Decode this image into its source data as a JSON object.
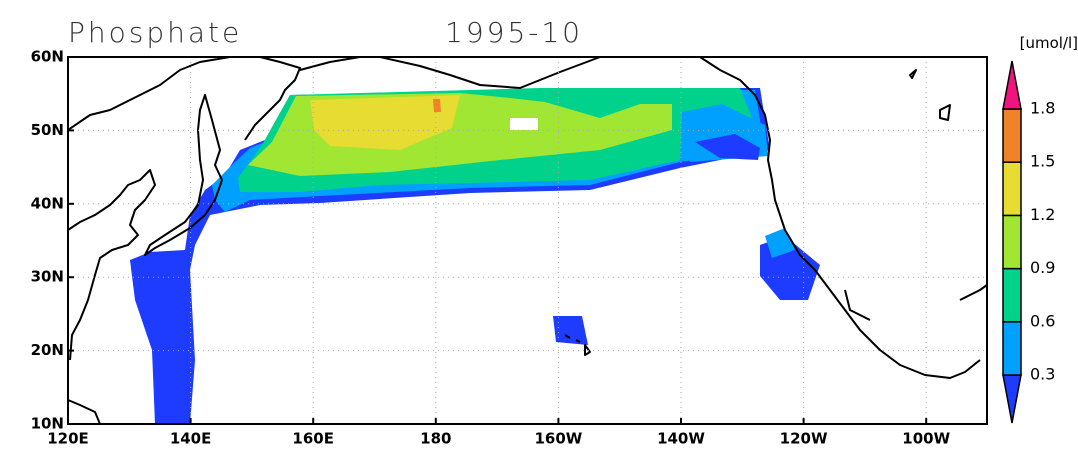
{
  "title": "Phosphate",
  "date": "1995-10",
  "axes": {
    "lat": [
      "10N",
      "20N",
      "30N",
      "40N",
      "50N",
      "60N"
    ],
    "lon": [
      "120E",
      "140E",
      "160E",
      "180",
      "160W",
      "140W",
      "120W",
      "100W"
    ]
  },
  "colorbar": {
    "unit": "[umol/l]",
    "levels": [
      0.3,
      0.6,
      0.9,
      1.2,
      1.5,
      1.8
    ],
    "colors": [
      "#1e3cff",
      "#00a0ff",
      "#00d28c",
      "#a0e632",
      "#e6dc32",
      "#f08228",
      "#f0147f"
    ]
  }
}
